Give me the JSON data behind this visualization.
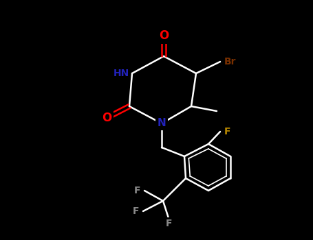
{
  "background_color": "#000000",
  "bond_color": "#ffffff",
  "O_color": "#ff0000",
  "N_color": "#2222bb",
  "Br_color": "#7a3000",
  "F_orange_color": "#b88800",
  "F_gray_color": "#888888",
  "lw": 1.8,
  "figsize": [
    4.55,
    3.5
  ],
  "dpi": 100,
  "xlim": [
    0,
    455
  ],
  "ylim": [
    0,
    350
  ]
}
